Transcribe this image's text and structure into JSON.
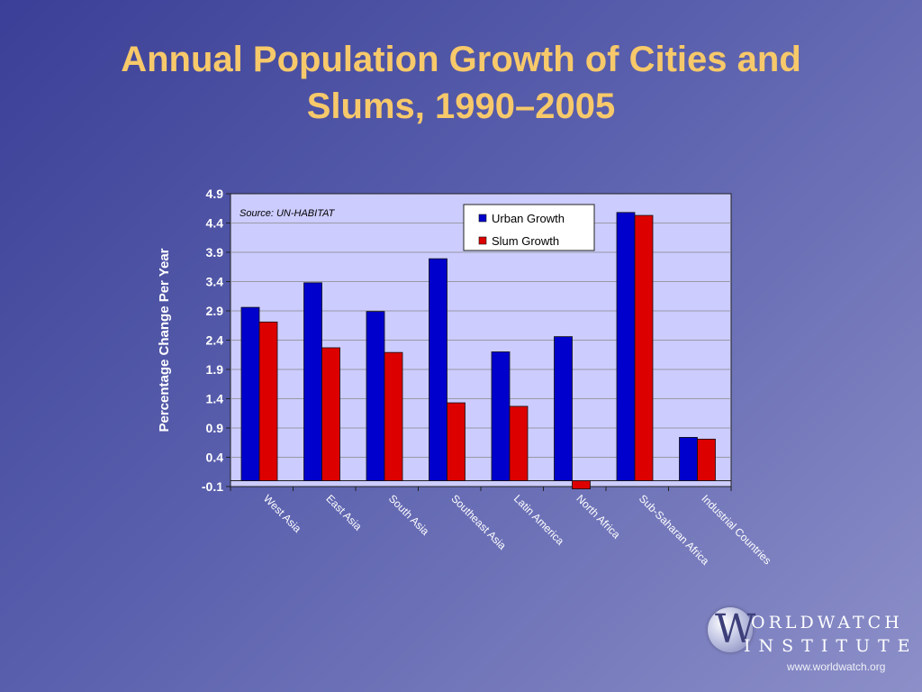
{
  "slide": {
    "title_line1": "Annual Population Growth of Cities and",
    "title_line2": "Slums, 1990–2005"
  },
  "logo": {
    "letter": "W",
    "line1": "ORLDWATCH",
    "line2": "INSTITUTE",
    "url": "www.worldwatch.org"
  },
  "chart_data": {
    "type": "bar",
    "title": "",
    "xlabel": "",
    "ylabel": "Percentage Change Per Year",
    "source_note": "Source:  UN-HABITAT",
    "categories": [
      "West Asia",
      "East Asia",
      "South Asia",
      "Southeast Asia",
      "Latin America",
      "North Africa",
      "Sub-Saharan Africa",
      "Industrial Countries"
    ],
    "series": [
      {
        "name": "Urban Growth",
        "color": "#0000cc",
        "values": [
          2.96,
          3.38,
          2.89,
          3.79,
          2.2,
          2.46,
          4.58,
          0.74
        ]
      },
      {
        "name": "Slum Growth",
        "color": "#dd0000",
        "values": [
          2.71,
          2.27,
          2.19,
          1.33,
          1.27,
          -0.14,
          4.53,
          0.71
        ]
      }
    ],
    "ylim": [
      -0.1,
      4.9
    ],
    "yticks": [
      "-0.1",
      "0.4",
      "0.9",
      "1.4",
      "1.9",
      "2.4",
      "2.9",
      "3.4",
      "3.9",
      "4.4",
      "4.9"
    ],
    "grid": true,
    "legend_position": "top-right",
    "plot_background": "#ccccff"
  }
}
